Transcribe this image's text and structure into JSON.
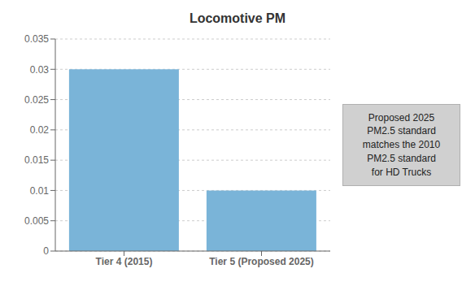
{
  "chart_data": {
    "type": "bar",
    "title": "Locomotive PM",
    "categories": [
      "Tier 4 (2015)",
      "Tier 5 (Proposed 2025)"
    ],
    "values": [
      0.03,
      0.01
    ],
    "color": "#7ab4d8",
    "ylim": [
      0,
      0.035
    ],
    "yticks": [
      0,
      0.005,
      0.01,
      0.015,
      0.02,
      0.025,
      0.03,
      0.035
    ],
    "grid": true,
    "annotation": "Proposed 2025\nPM2.5 standard\nmatches the 2010\nPM2.5 standard\nfor HD Trucks"
  }
}
